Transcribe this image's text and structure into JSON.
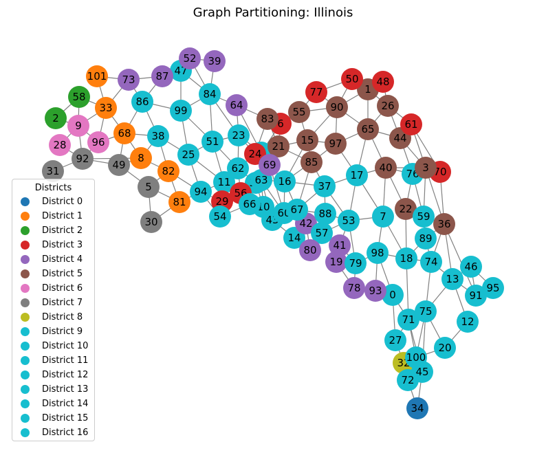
{
  "title": "Graph Partitioning: Illinois",
  "legend": {
    "title": "Districts",
    "items": [
      {
        "label": "District 0",
        "color": "#1f77b4"
      },
      {
        "label": "District 1",
        "color": "#ff7f0e"
      },
      {
        "label": "District 2",
        "color": "#2ca02c"
      },
      {
        "label": "District 3",
        "color": "#d62728"
      },
      {
        "label": "District 4",
        "color": "#9467bd"
      },
      {
        "label": "District 5",
        "color": "#8c564b"
      },
      {
        "label": "District 6",
        "color": "#e377c2"
      },
      {
        "label": "District 7",
        "color": "#7f7f7f"
      },
      {
        "label": "District 8",
        "color": "#bcbd22"
      },
      {
        "label": "District 9",
        "color": "#17becf"
      },
      {
        "label": "District 10",
        "color": "#17becf"
      },
      {
        "label": "District 11",
        "color": "#17becf"
      },
      {
        "label": "District 12",
        "color": "#17becf"
      },
      {
        "label": "District 13",
        "color": "#17becf"
      },
      {
        "label": "District 14",
        "color": "#17becf"
      },
      {
        "label": "District 15",
        "color": "#17becf"
      },
      {
        "label": "District 16",
        "color": "#17becf"
      }
    ]
  },
  "nodes": [
    {
      "id": "0",
      "district": 9
    },
    {
      "id": "1",
      "district": 5
    },
    {
      "id": "2",
      "district": 2
    },
    {
      "id": "4",
      "district": 9
    },
    {
      "id": "5",
      "district": 7
    },
    {
      "id": "6",
      "district": 3
    },
    {
      "id": "7",
      "district": 9
    },
    {
      "id": "8",
      "district": 1
    },
    {
      "id": "9",
      "district": 6
    },
    {
      "id": "10",
      "district": 9
    },
    {
      "id": "11",
      "district": 9
    },
    {
      "id": "12",
      "district": 9
    },
    {
      "id": "13",
      "district": 9
    },
    {
      "id": "14",
      "district": 9
    },
    {
      "id": "15",
      "district": 5
    },
    {
      "id": "16",
      "district": 9
    },
    {
      "id": "17",
      "district": 9
    },
    {
      "id": "18",
      "district": 9
    },
    {
      "id": "19",
      "district": 4
    },
    {
      "id": "20",
      "district": 9
    },
    {
      "id": "21",
      "district": 5
    },
    {
      "id": "22",
      "district": 5
    },
    {
      "id": "23",
      "district": 9
    },
    {
      "id": "24",
      "district": 3
    },
    {
      "id": "25",
      "district": 9
    },
    {
      "id": "26",
      "district": 5
    },
    {
      "id": "27",
      "district": 9
    },
    {
      "id": "28",
      "district": 6
    },
    {
      "id": "29",
      "district": 3
    },
    {
      "id": "30",
      "district": 7
    },
    {
      "id": "31",
      "district": 7
    },
    {
      "id": "32",
      "district": 8
    },
    {
      "id": "33",
      "district": 1
    },
    {
      "id": "34",
      "district": 0
    },
    {
      "id": "35",
      "district": 9
    },
    {
      "id": "36",
      "district": 5
    },
    {
      "id": "37",
      "district": 9
    },
    {
      "id": "38",
      "district": 9
    },
    {
      "id": "39",
      "district": 4
    },
    {
      "id": "40",
      "district": 5
    },
    {
      "id": "41",
      "district": 4
    },
    {
      "id": "42",
      "district": 4
    },
    {
      "id": "43",
      "district": 9
    },
    {
      "id": "44",
      "district": 5
    },
    {
      "id": "45",
      "district": 9
    },
    {
      "id": "46",
      "district": 9
    },
    {
      "id": "47",
      "district": 9
    },
    {
      "id": "48",
      "district": 3
    },
    {
      "id": "49",
      "district": 7
    },
    {
      "id": "50",
      "district": 3
    },
    {
      "id": "51",
      "district": 9
    },
    {
      "id": "52",
      "district": 4
    },
    {
      "id": "53",
      "district": 9
    },
    {
      "id": "54",
      "district": 9
    },
    {
      "id": "55",
      "district": 5
    },
    {
      "id": "56",
      "district": 3
    },
    {
      "id": "57",
      "district": 9
    },
    {
      "id": "58",
      "district": 2
    },
    {
      "id": "59",
      "district": 9
    },
    {
      "id": "60",
      "district": 9
    },
    {
      "id": "61",
      "district": 3
    },
    {
      "id": "62",
      "district": 9
    },
    {
      "id": "63",
      "district": 9
    },
    {
      "id": "64",
      "district": 4
    },
    {
      "id": "65",
      "district": 5
    },
    {
      "id": "66",
      "district": 9
    },
    {
      "id": "67",
      "district": 9
    },
    {
      "id": "68",
      "district": 1
    },
    {
      "id": "69",
      "district": 4
    },
    {
      "id": "70",
      "district": 3
    },
    {
      "id": "71",
      "district": 9
    },
    {
      "id": "72",
      "district": 9
    },
    {
      "id": "73",
      "district": 4
    },
    {
      "id": "74",
      "district": 9
    },
    {
      "id": "75",
      "district": 9
    },
    {
      "id": "76",
      "district": 9
    },
    {
      "id": "77",
      "district": 3
    },
    {
      "id": "78",
      "district": 4
    },
    {
      "id": "79",
      "district": 9
    },
    {
      "id": "80",
      "district": 4
    },
    {
      "id": "81",
      "district": 1
    },
    {
      "id": "82",
      "district": 1
    },
    {
      "id": "83",
      "district": 5
    },
    {
      "id": "84",
      "district": 9
    },
    {
      "id": "85",
      "district": 5
    },
    {
      "id": "86",
      "district": 9
    },
    {
      "id": "87",
      "district": 4
    },
    {
      "id": "88",
      "district": 9
    },
    {
      "id": "89",
      "district": 9
    },
    {
      "id": "90",
      "district": 5
    },
    {
      "id": "91",
      "district": 9
    },
    {
      "id": "92",
      "district": 7
    },
    {
      "id": "93",
      "district": 4
    },
    {
      "id": "94",
      "district": 9
    },
    {
      "id": "95",
      "district": 9
    },
    {
      "id": "96",
      "district": 6
    },
    {
      "id": "97",
      "district": 5
    },
    {
      "id": "98",
      "district": 9
    },
    {
      "id": "99",
      "district": 9
    },
    {
      "id": "100",
      "district": 9
    },
    {
      "id": "101",
      "district": 1
    },
    {
      "id": "3",
      "district": 5
    }
  ],
  "edges": [
    [
      "2",
      "58"
    ],
    [
      "2",
      "9"
    ],
    [
      "58",
      "9"
    ],
    [
      "58",
      "33"
    ],
    [
      "101",
      "33"
    ],
    [
      "101",
      "73"
    ],
    [
      "73",
      "33"
    ],
    [
      "73",
      "86"
    ],
    [
      "87",
      "86"
    ],
    [
      "87",
      "47"
    ],
    [
      "87",
      "73"
    ],
    [
      "52",
      "47"
    ],
    [
      "52",
      "39"
    ],
    [
      "52",
      "84"
    ],
    [
      "47",
      "84"
    ],
    [
      "47",
      "99"
    ],
    [
      "39",
      "84"
    ],
    [
      "33",
      "9"
    ],
    [
      "33",
      "68"
    ],
    [
      "33",
      "96"
    ],
    [
      "86",
      "68"
    ],
    [
      "86",
      "38"
    ],
    [
      "86",
      "99"
    ],
    [
      "9",
      "96"
    ],
    [
      "9",
      "28"
    ],
    [
      "9",
      "92"
    ],
    [
      "28",
      "92"
    ],
    [
      "92",
      "31"
    ],
    [
      "92",
      "49"
    ],
    [
      "92",
      "8"
    ],
    [
      "96",
      "68"
    ],
    [
      "96",
      "92"
    ],
    [
      "68",
      "49"
    ],
    [
      "68",
      "8"
    ],
    [
      "68",
      "38"
    ],
    [
      "38",
      "8"
    ],
    [
      "38",
      "25"
    ],
    [
      "38",
      "82"
    ],
    [
      "99",
      "25"
    ],
    [
      "99",
      "84"
    ],
    [
      "99",
      "51"
    ],
    [
      "84",
      "64"
    ],
    [
      "84",
      "51"
    ],
    [
      "84",
      "23"
    ],
    [
      "64",
      "23"
    ],
    [
      "64",
      "83"
    ],
    [
      "64",
      "4"
    ],
    [
      "49",
      "5"
    ],
    [
      "49",
      "8"
    ],
    [
      "5",
      "30"
    ],
    [
      "5",
      "82"
    ],
    [
      "5",
      "81"
    ],
    [
      "8",
      "82"
    ],
    [
      "82",
      "81"
    ],
    [
      "82",
      "94"
    ],
    [
      "25",
      "94"
    ],
    [
      "25",
      "11"
    ],
    [
      "25",
      "51"
    ],
    [
      "51",
      "23"
    ],
    [
      "51",
      "11"
    ],
    [
      "51",
      "62"
    ],
    [
      "23",
      "62"
    ],
    [
      "23",
      "24"
    ],
    [
      "23",
      "4"
    ],
    [
      "81",
      "94"
    ],
    [
      "81",
      "30"
    ],
    [
      "94",
      "29"
    ],
    [
      "94",
      "54"
    ],
    [
      "94",
      "11"
    ],
    [
      "11",
      "62"
    ],
    [
      "11",
      "29"
    ],
    [
      "11",
      "56"
    ],
    [
      "62",
      "24"
    ],
    [
      "62",
      "35"
    ],
    [
      "62",
      "56"
    ],
    [
      "24",
      "69"
    ],
    [
      "24",
      "4"
    ],
    [
      "4",
      "6"
    ],
    [
      "4",
      "21"
    ],
    [
      "83",
      "6"
    ],
    [
      "83",
      "21"
    ],
    [
      "83",
      "24"
    ],
    [
      "6",
      "55"
    ],
    [
      "6",
      "21"
    ],
    [
      "21",
      "15"
    ],
    [
      "21",
      "69"
    ],
    [
      "21",
      "85"
    ],
    [
      "69",
      "16"
    ],
    [
      "69",
      "35"
    ],
    [
      "69",
      "63"
    ],
    [
      "56",
      "35"
    ],
    [
      "56",
      "66"
    ],
    [
      "56",
      "29"
    ],
    [
      "29",
      "54"
    ],
    [
      "54",
      "66"
    ],
    [
      "35",
      "63"
    ],
    [
      "35",
      "66"
    ],
    [
      "35",
      "10"
    ],
    [
      "63",
      "10"
    ],
    [
      "63",
      "16"
    ],
    [
      "63",
      "60"
    ],
    [
      "66",
      "10"
    ],
    [
      "10",
      "43"
    ],
    [
      "10",
      "60"
    ],
    [
      "16",
      "37"
    ],
    [
      "16",
      "60"
    ],
    [
      "16",
      "67"
    ],
    [
      "16",
      "85"
    ],
    [
      "43",
      "60"
    ],
    [
      "43",
      "14"
    ],
    [
      "43",
      "67"
    ],
    [
      "60",
      "67"
    ],
    [
      "67",
      "42"
    ],
    [
      "67",
      "88"
    ],
    [
      "67",
      "37"
    ],
    [
      "14",
      "42"
    ],
    [
      "14",
      "80"
    ],
    [
      "42",
      "57"
    ],
    [
      "42",
      "80"
    ],
    [
      "88",
      "57"
    ],
    [
      "88",
      "53"
    ],
    [
      "57",
      "80"
    ],
    [
      "57",
      "41"
    ],
    [
      "57",
      "53"
    ],
    [
      "37",
      "53"
    ],
    [
      "37",
      "17"
    ],
    [
      "37",
      "85"
    ],
    [
      "37",
      "88"
    ],
    [
      "53",
      "41"
    ],
    [
      "53",
      "79"
    ],
    [
      "53",
      "7"
    ],
    [
      "41",
      "19"
    ],
    [
      "41",
      "79"
    ],
    [
      "19",
      "79"
    ],
    [
      "19",
      "78"
    ],
    [
      "79",
      "78"
    ],
    [
      "79",
      "98"
    ],
    [
      "78",
      "93"
    ],
    [
      "93",
      "98"
    ],
    [
      "93",
      "0"
    ],
    [
      "98",
      "0"
    ],
    [
      "98",
      "18"
    ],
    [
      "98",
      "7"
    ],
    [
      "0",
      "71"
    ],
    [
      "0",
      "27"
    ],
    [
      "7",
      "18"
    ],
    [
      "7",
      "40"
    ],
    [
      "7",
      "17"
    ],
    [
      "18",
      "71"
    ],
    [
      "18",
      "74"
    ],
    [
      "18",
      "89"
    ],
    [
      "18",
      "22"
    ],
    [
      "71",
      "75"
    ],
    [
      "71",
      "27"
    ],
    [
      "71",
      "45"
    ],
    [
      "27",
      "32"
    ],
    [
      "75",
      "74"
    ],
    [
      "75",
      "13"
    ],
    [
      "75",
      "20"
    ],
    [
      "75",
      "100"
    ],
    [
      "75",
      "45"
    ],
    [
      "74",
      "13"
    ],
    [
      "74",
      "89"
    ],
    [
      "89",
      "59"
    ],
    [
      "89",
      "36"
    ],
    [
      "59",
      "22"
    ],
    [
      "59",
      "36"
    ],
    [
      "59",
      "76"
    ],
    [
      "59",
      "3"
    ],
    [
      "36",
      "74"
    ],
    [
      "36",
      "70"
    ],
    [
      "36",
      "3"
    ],
    [
      "36",
      "13"
    ],
    [
      "13",
      "46"
    ],
    [
      "13",
      "91"
    ],
    [
      "13",
      "12"
    ],
    [
      "46",
      "95"
    ],
    [
      "46",
      "91"
    ],
    [
      "91",
      "95"
    ],
    [
      "91",
      "36"
    ],
    [
      "12",
      "20"
    ],
    [
      "20",
      "100"
    ],
    [
      "32",
      "100"
    ],
    [
      "32",
      "72"
    ],
    [
      "100",
      "45"
    ],
    [
      "45",
      "72"
    ],
    [
      "45",
      "34"
    ],
    [
      "72",
      "34"
    ],
    [
      "100",
      "71"
    ],
    [
      "22",
      "40"
    ],
    [
      "22",
      "76"
    ],
    [
      "40",
      "76"
    ],
    [
      "40",
      "65"
    ],
    [
      "40",
      "17"
    ],
    [
      "40",
      "3"
    ],
    [
      "76",
      "3"
    ],
    [
      "76",
      "44"
    ],
    [
      "3",
      "70"
    ],
    [
      "3",
      "44"
    ],
    [
      "3",
      "61"
    ],
    [
      "44",
      "61"
    ],
    [
      "44",
      "65"
    ],
    [
      "44",
      "26"
    ],
    [
      "61",
      "26"
    ],
    [
      "61",
      "70"
    ],
    [
      "26",
      "48"
    ],
    [
      "26",
      "1"
    ],
    [
      "26",
      "65"
    ],
    [
      "48",
      "1"
    ],
    [
      "1",
      "50"
    ],
    [
      "1",
      "90"
    ],
    [
      "1",
      "65"
    ],
    [
      "50",
      "90"
    ],
    [
      "50",
      "77"
    ],
    [
      "77",
      "90"
    ],
    [
      "77",
      "55"
    ],
    [
      "55",
      "15"
    ],
    [
      "55",
      "90"
    ],
    [
      "90",
      "15"
    ],
    [
      "90",
      "97"
    ],
    [
      "90",
      "65"
    ],
    [
      "15",
      "97"
    ],
    [
      "15",
      "85"
    ],
    [
      "97",
      "85"
    ],
    [
      "97",
      "17"
    ],
    [
      "97",
      "65"
    ],
    [
      "65",
      "17"
    ],
    [
      "17",
      "53"
    ],
    [
      "85",
      "67"
    ],
    [
      "15",
      "16"
    ],
    [
      "69",
      "60"
    ],
    [
      "63",
      "43"
    ]
  ]
}
